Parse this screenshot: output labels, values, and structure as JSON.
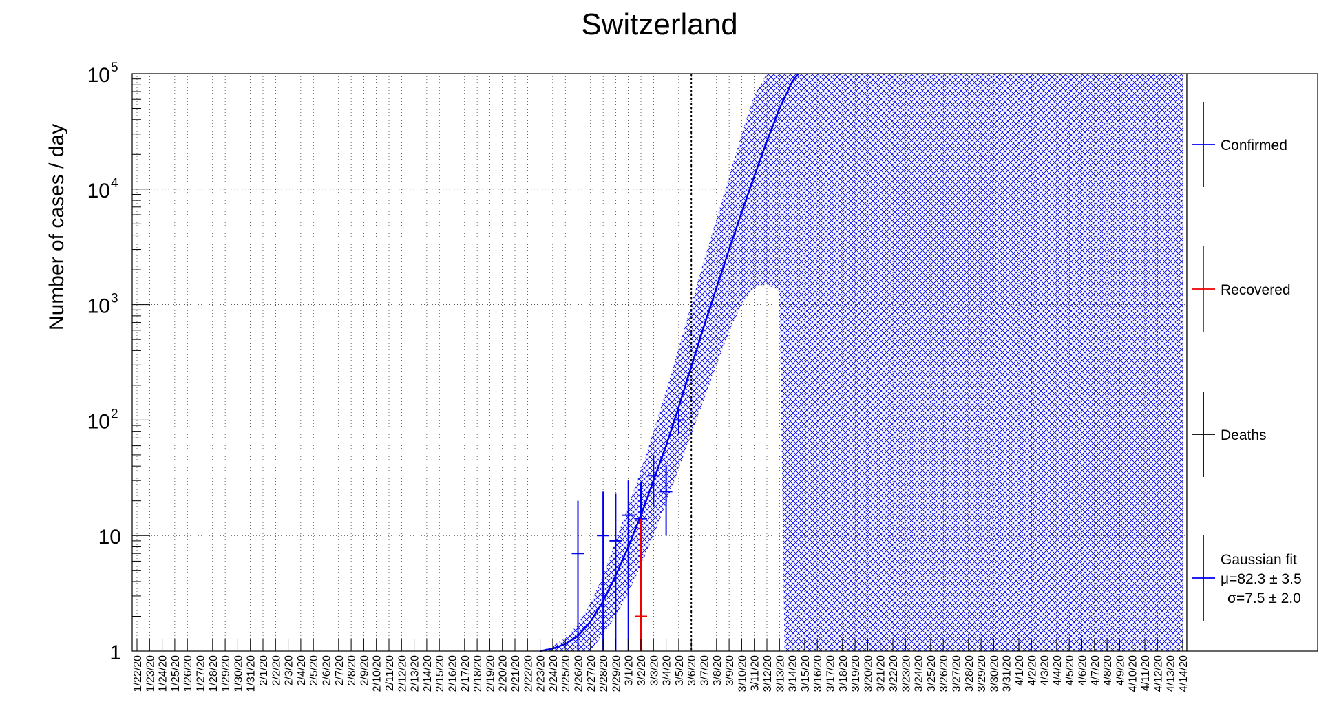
{
  "chart_data": {
    "type": "scatter",
    "title": "Switzerland",
    "xlabel": "",
    "ylabel": "Number of cases / day",
    "yscale": "log",
    "ylim": [
      1,
      100000
    ],
    "grid": true,
    "legend_position": "right",
    "x_categories": [
      "1/22/20",
      "1/23/20",
      "1/24/20",
      "1/25/20",
      "1/26/20",
      "1/27/20",
      "1/28/20",
      "1/29/20",
      "1/30/20",
      "1/31/20",
      "2/1/20",
      "2/2/20",
      "2/3/20",
      "2/4/20",
      "2/5/20",
      "2/6/20",
      "2/7/20",
      "2/8/20",
      "2/9/20",
      "2/10/20",
      "2/11/20",
      "2/12/20",
      "2/13/20",
      "2/14/20",
      "2/15/20",
      "2/16/20",
      "2/17/20",
      "2/18/20",
      "2/19/20",
      "2/20/20",
      "2/21/20",
      "2/22/20",
      "2/23/20",
      "2/24/20",
      "2/25/20",
      "2/26/20",
      "2/27/20",
      "2/28/20",
      "2/29/20",
      "3/1/20",
      "3/2/20",
      "3/3/20",
      "3/4/20",
      "3/5/20",
      "3/6/20",
      "3/7/20",
      "3/8/20",
      "3/9/20",
      "3/10/20",
      "3/11/20",
      "3/12/20",
      "3/13/20",
      "3/14/20",
      "3/15/20",
      "3/16/20",
      "3/17/20",
      "3/18/20",
      "3/19/20",
      "3/20/20",
      "3/21/20",
      "3/22/20",
      "3/23/20",
      "3/24/20",
      "3/25/20",
      "3/26/20",
      "3/27/20",
      "3/28/20",
      "3/29/20",
      "3/30/20",
      "3/31/20",
      "4/1/20",
      "4/2/20",
      "4/3/20",
      "4/4/20",
      "4/5/20",
      "4/6/20",
      "4/7/20",
      "4/8/20",
      "4/9/20",
      "4/10/20",
      "4/11/20",
      "4/12/20",
      "4/13/20",
      "4/14/20"
    ],
    "y_ticks": [
      {
        "value": 1,
        "base": "1",
        "exp": ""
      },
      {
        "value": 10,
        "base": "10",
        "exp": ""
      },
      {
        "value": 100,
        "base": "10",
        "exp": "2"
      },
      {
        "value": 1000,
        "base": "10",
        "exp": "3"
      },
      {
        "value": 10000,
        "base": "10",
        "exp": "4"
      },
      {
        "value": 100000,
        "base": "10",
        "exp": "5"
      }
    ],
    "vertical_marker": "3/6/20",
    "series": [
      {
        "name": "Confirmed",
        "color": "#0000ee",
        "points": [
          {
            "x": "2/26/20",
            "y": 7,
            "ylo": 1,
            "yhi": 20
          },
          {
            "x": "2/28/20",
            "y": 10,
            "ylo": 1,
            "yhi": 24
          },
          {
            "x": "2/29/20",
            "y": 9,
            "ylo": 1,
            "yhi": 23
          },
          {
            "x": "3/1/20",
            "y": 15,
            "ylo": 1,
            "yhi": 30
          },
          {
            "x": "3/2/20",
            "y": 14,
            "ylo": 1,
            "yhi": 29
          },
          {
            "x": "3/3/20",
            "y": 33,
            "ylo": 18,
            "yhi": 50
          },
          {
            "x": "3/4/20",
            "y": 24,
            "ylo": 10,
            "yhi": 41
          },
          {
            "x": "3/5/20",
            "y": 100,
            "ylo": 75,
            "yhi": 130
          }
        ]
      },
      {
        "name": "Recovered",
        "color": "#ee0000",
        "points": [
          {
            "x": "3/2/20",
            "y": 2,
            "ylo": 1,
            "yhi": 14
          }
        ]
      },
      {
        "name": "Deaths",
        "color": "#000000",
        "points": []
      },
      {
        "name": "Gaussian fit",
        "color": "#0000ee",
        "params": [
          "μ=82.3 ± 3.5",
          "σ=7.5 ± 2.0"
        ],
        "curve": [
          {
            "x": "2/23/20",
            "y": 1.0
          },
          {
            "x": "2/24/20",
            "y": 1.05
          },
          {
            "x": "2/25/20",
            "y": 1.15
          },
          {
            "x": "2/26/20",
            "y": 1.35
          },
          {
            "x": "2/27/20",
            "y": 1.8
          },
          {
            "x": "2/28/20",
            "y": 2.7
          },
          {
            "x": "2/29/20",
            "y": 4.5
          },
          {
            "x": "3/1/20",
            "y": 8
          },
          {
            "x": "3/2/20",
            "y": 15
          },
          {
            "x": "3/3/20",
            "y": 30
          },
          {
            "x": "3/4/20",
            "y": 60
          },
          {
            "x": "3/5/20",
            "y": 130
          },
          {
            "x": "3/6/20",
            "y": 290
          },
          {
            "x": "3/7/20",
            "y": 650
          },
          {
            "x": "3/8/20",
            "y": 1400
          },
          {
            "x": "3/9/20",
            "y": 3000
          },
          {
            "x": "3/10/20",
            "y": 6300
          },
          {
            "x": "3/11/20",
            "y": 13000
          },
          {
            "x": "3/12/20",
            "y": 26000
          },
          {
            "x": "3/13/20",
            "y": 50000
          },
          {
            "x": "3/14/20",
            "y": 85000
          },
          {
            "x": "3/14.5/20",
            "y": 100000
          }
        ],
        "band_upper": [
          {
            "x": "2/23/20",
            "y": 1.0
          },
          {
            "x": "2/24/20",
            "y": 1.1
          },
          {
            "x": "2/25/20",
            "y": 1.3
          },
          {
            "x": "2/26/20",
            "y": 1.7
          },
          {
            "x": "2/27/20",
            "y": 2.6
          },
          {
            "x": "2/28/20",
            "y": 4.5
          },
          {
            "x": "2/29/20",
            "y": 9
          },
          {
            "x": "3/1/20",
            "y": 18
          },
          {
            "x": "3/2/20",
            "y": 37
          },
          {
            "x": "3/3/20",
            "y": 80
          },
          {
            "x": "3/4/20",
            "y": 180
          },
          {
            "x": "3/5/20",
            "y": 420
          },
          {
            "x": "3/6/20",
            "y": 1000
          },
          {
            "x": "3/7/20",
            "y": 2400
          },
          {
            "x": "3/8/20",
            "y": 5500
          },
          {
            "x": "3/9/20",
            "y": 13000
          },
          {
            "x": "3/10/20",
            "y": 30000
          },
          {
            "x": "3/11/20",
            "y": 65000
          },
          {
            "x": "3/12/20",
            "y": 100000
          }
        ],
        "band_lower": [
          {
            "x": "2/27/20",
            "y": 1.0
          },
          {
            "x": "2/28/20",
            "y": 1.4
          },
          {
            "x": "2/29/20",
            "y": 2.0
          },
          {
            "x": "3/1/20",
            "y": 3.2
          },
          {
            "x": "3/2/20",
            "y": 5.5
          },
          {
            "x": "3/3/20",
            "y": 10
          },
          {
            "x": "3/4/20",
            "y": 19
          },
          {
            "x": "3/5/20",
            "y": 38
          },
          {
            "x": "3/6/20",
            "y": 75
          },
          {
            "x": "3/7/20",
            "y": 150
          },
          {
            "x": "3/8/20",
            "y": 300
          },
          {
            "x": "3/9/20",
            "y": 580
          },
          {
            "x": "3/10/20",
            "y": 1000
          },
          {
            "x": "3/11/20",
            "y": 1400
          },
          {
            "x": "3/12/20",
            "y": 1500
          },
          {
            "x": "3/13/20",
            "y": 1300
          },
          {
            "x": "3/13.4/20",
            "y": 1.0
          }
        ],
        "band_full_from": "3/15/20",
        "band_full_to": "4/14/20"
      }
    ]
  }
}
